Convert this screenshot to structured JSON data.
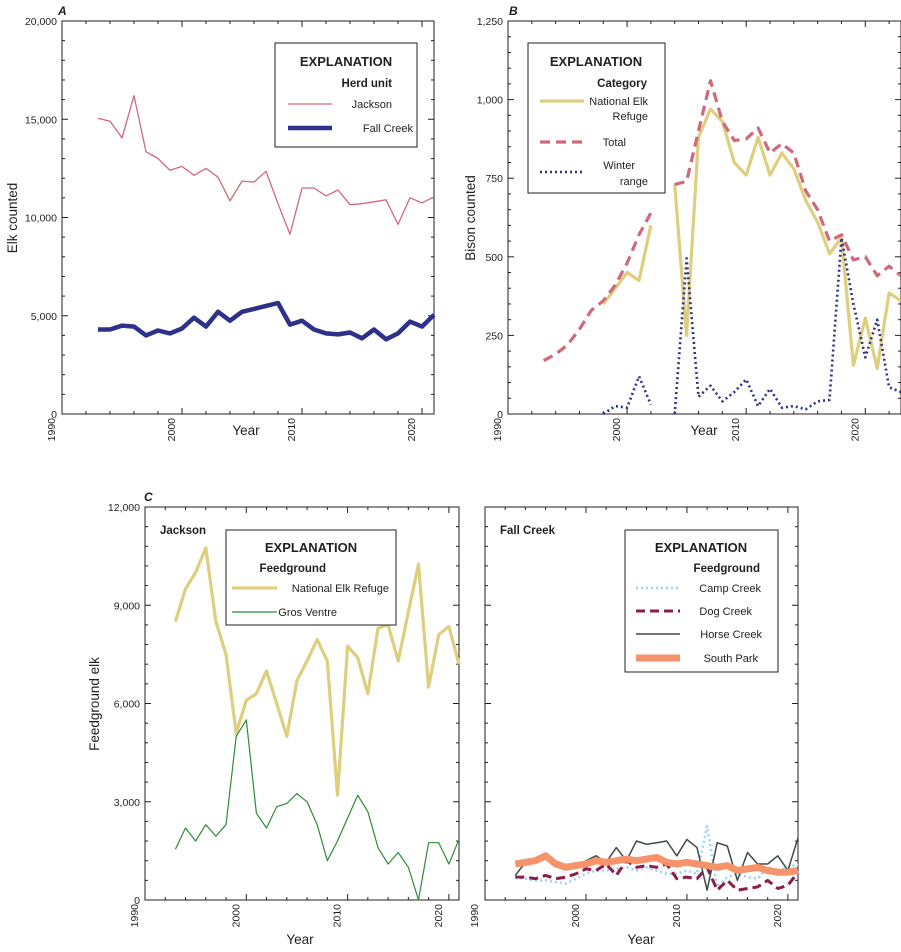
{
  "chart_data": [
    {
      "panel": "A",
      "type": "line",
      "xlabel": "Year",
      "ylabel": "Elk counted",
      "xlim": [
        1990,
        2021
      ],
      "ylim": [
        0,
        20000
      ],
      "xticks": [
        1990,
        2000,
        2010,
        2020
      ],
      "yticks": [
        0,
        5000,
        10000,
        15000,
        20000
      ],
      "xtick_labels": [
        "1990",
        "2000",
        "2010",
        "2020"
      ],
      "ytick_labels": [
        "0",
        "5,000",
        "10,000",
        "15,000",
        "20,000"
      ],
      "legend": {
        "title": "EXPLANATION",
        "subtitle": "Herd unit"
      },
      "series": [
        {
          "name": "Jackson",
          "color": "#d0697b",
          "width": 1.3,
          "x": [
            1993,
            1994,
            1995,
            1996,
            1997,
            1998,
            1999,
            2000,
            2001,
            2002,
            2003,
            2004,
            2005,
            2006,
            2007,
            2008,
            2009,
            2010,
            2011,
            2012,
            2013,
            2014,
            2015,
            2016,
            2017,
            2018,
            2019,
            2020,
            2021
          ],
          "y": [
            15050,
            14900,
            14050,
            16200,
            13350,
            13000,
            12400,
            12600,
            12150,
            12500,
            12050,
            10850,
            11850,
            11800,
            12350,
            10700,
            9150,
            11500,
            11500,
            11100,
            11400,
            10650,
            10700,
            10800,
            10900,
            9650,
            11000,
            10750,
            11050
          ]
        },
        {
          "name": "Fall Creek",
          "color": "#2e3089",
          "width": 4.5,
          "x": [
            1993,
            1994,
            1995,
            1996,
            1997,
            1998,
            1999,
            2000,
            2001,
            2002,
            2003,
            2004,
            2005,
            2006,
            2007,
            2008,
            2009,
            2010,
            2011,
            2012,
            2013,
            2014,
            2015,
            2016,
            2017,
            2018,
            2019,
            2020,
            2021
          ],
          "y": [
            4300,
            4300,
            4500,
            4450,
            4000,
            4250,
            4100,
            4350,
            4900,
            4450,
            5200,
            4750,
            5200,
            5350,
            5500,
            5650,
            4550,
            4750,
            4300,
            4100,
            4050,
            4150,
            3850,
            4300,
            3800,
            4100,
            4700,
            4450,
            5050
          ]
        }
      ]
    },
    {
      "panel": "B",
      "type": "line",
      "xlabel": "Year",
      "ylabel": "Bison counted",
      "xlim": [
        1990,
        2023
      ],
      "ylim": [
        0,
        1250
      ],
      "xticks": [
        1990,
        2000,
        2010,
        2020
      ],
      "yticks": [
        0,
        250,
        500,
        750,
        1000,
        1250
      ],
      "xtick_labels": [
        "1990",
        "2000",
        "2010",
        "2020"
      ],
      "ytick_labels": [
        "0",
        "250",
        "500",
        "750",
        "1,000",
        "1,250"
      ],
      "legend": {
        "title": "EXPLANATION",
        "subtitle": "Category"
      },
      "series": [
        {
          "name": "National Elk Refuge",
          "legend_lines": [
            "National Elk",
            "Refuge"
          ],
          "color": "#ddcf7d",
          "width": 3.2,
          "dash": "",
          "segments": [
            {
              "x": [
                1998,
                2000,
                2001,
                2002
              ],
              "y": [
                350,
                450,
                425,
                600
              ]
            },
            {
              "x": [
                2004,
                2005,
                2006,
                2007,
                2008,
                2009,
                2010,
                2011,
                2012,
                2013,
                2014,
                2015,
                2016,
                2017,
                2018,
                2019,
                2020,
                2021,
                2022,
                2023
              ],
              "y": [
                730,
                250,
                880,
                970,
                930,
                800,
                760,
                880,
                760,
                830,
                780,
                680,
                610,
                510,
                560,
                155,
                305,
                145,
                385,
                360
              ]
            }
          ]
        },
        {
          "name": "Total",
          "legend_lines": [
            "Total"
          ],
          "color": "#d0697b",
          "width": 3.2,
          "dash": "10 6",
          "segments": [
            {
              "x": [
                1993,
                1994,
                1995,
                1996,
                1997,
                1998,
                1999,
                2000,
                2001,
                2002
              ],
              "y": [
                170,
                190,
                220,
                270,
                330,
                360,
                410,
                480,
                570,
                640
              ]
            },
            {
              "x": [
                2004,
                2005,
                2006,
                2007,
                2008,
                2009,
                2010,
                2011,
                2012,
                2013,
                2014,
                2015,
                2016,
                2017,
                2018,
                2019,
                2020,
                2021,
                2022,
                2023
              ],
              "y": [
                730,
                740,
                900,
                1060,
                930,
                870,
                875,
                910,
                830,
                860,
                830,
                710,
                650,
                550,
                570,
                490,
                500,
                440,
                470,
                440
              ]
            }
          ]
        },
        {
          "name": "Winter range",
          "legend_lines": [
            "Winter",
            "range"
          ],
          "color": "#2e3089",
          "width": 2.6,
          "dash": "2 3",
          "segments": [
            {
              "x": [
                1998,
                1999,
                2000,
                2001,
                2002
              ],
              "y": [
                0,
                25,
                20,
                120,
                30
              ]
            },
            {
              "x": [
                2004,
                2005,
                2006,
                2007,
                2008,
                2009,
                2010,
                2011,
                2012,
                2013,
                2014,
                2015,
                2016,
                2017,
                2018,
                2019,
                2020,
                2021,
                2022,
                2023
              ],
              "y": [
                0,
                495,
                55,
                90,
                40,
                70,
                110,
                25,
                80,
                20,
                25,
                15,
                40,
                45,
                560,
                350,
                180,
                300,
                85,
                70
              ]
            }
          ]
        }
      ]
    },
    {
      "panel": "C",
      "subpanel": "Jackson",
      "type": "line",
      "xlabel": "Year",
      "ylabel": "Feedground elk",
      "xlim": [
        1990,
        2021
      ],
      "ylim": [
        0,
        12000
      ],
      "xticks": [
        1990,
        2000,
        2010,
        2020
      ],
      "yticks": [
        0,
        3000,
        6000,
        9000,
        12000
      ],
      "xtick_labels": [
        "1990",
        "2000",
        "2010",
        "2020"
      ],
      "ytick_labels": [
        "0",
        "3,000",
        "6,000",
        "9,000",
        "12,000"
      ],
      "legend": {
        "title": "EXPLANATION",
        "subtitle": "Feedground"
      },
      "series": [
        {
          "name": "National Elk Refuge",
          "color": "#ddcf7d",
          "width": 3.2,
          "x": [
            1993,
            1994,
            1995,
            1996,
            1997,
            1998,
            1999,
            2000,
            2001,
            2002,
            2003,
            2004,
            2005,
            2006,
            2007,
            2008,
            2009,
            2010,
            2011,
            2012,
            2013,
            2014,
            2015,
            2016,
            2017,
            2018,
            2019,
            2020,
            2021
          ],
          "y": [
            8500,
            9500,
            10000,
            10750,
            8500,
            7500,
            5100,
            6100,
            6300,
            7000,
            6000,
            5000,
            6700,
            7300,
            7950,
            7300,
            3200,
            7750,
            7400,
            6300,
            8300,
            8400,
            7300,
            8800,
            10250,
            6500,
            8100,
            8350,
            7200
          ]
        },
        {
          "name": "Gros Ventre",
          "color": "#2e8b3a",
          "width": 1.2,
          "x": [
            1993,
            1994,
            1995,
            1996,
            1997,
            1998,
            1999,
            2000,
            2001,
            2002,
            2003,
            2004,
            2005,
            2006,
            2007,
            2008,
            2009,
            2010,
            2011,
            2012,
            2013,
            2014,
            2015,
            2016,
            2017,
            2018,
            2019,
            2020,
            2021
          ],
          "y": [
            1550,
            2200,
            1800,
            2300,
            1950,
            2300,
            5000,
            5500,
            2650,
            2200,
            2850,
            2950,
            3250,
            3000,
            2300,
            1200,
            1800,
            2500,
            3200,
            2700,
            1600,
            1100,
            1450,
            1000,
            0,
            1750,
            1750,
            1100,
            1850
          ]
        }
      ]
    },
    {
      "panel": "C",
      "subpanel": "Fall Creek",
      "type": "line",
      "xlabel": "Year",
      "xlim": [
        1990,
        2021
      ],
      "ylim": [
        0,
        12000
      ],
      "xticks": [
        1990,
        2000,
        2010,
        2020
      ],
      "xtick_labels": [
        "1990",
        "2000",
        "2010",
        "2020"
      ],
      "legend": {
        "title": "EXPLANATION",
        "subtitle": "Feedground"
      },
      "series": [
        {
          "name": "Camp Creek",
          "color": "#9dd3ee",
          "width": 2.6,
          "dash": "2 3",
          "x": [
            1993,
            1994,
            1995,
            1996,
            1997,
            1998,
            1999,
            2000,
            2001,
            2002,
            2003,
            2004,
            2005,
            2006,
            2007,
            2008,
            2009,
            2010,
            2011,
            2012,
            2013,
            2014,
            2015,
            2016,
            2017,
            2018,
            2019,
            2020,
            2021
          ],
          "y": [
            700,
            650,
            600,
            600,
            550,
            500,
            650,
            800,
            900,
            900,
            950,
            1000,
            900,
            1000,
            900,
            800,
            800,
            900,
            800,
            2250,
            400,
            700,
            800,
            700,
            650,
            1000,
            900,
            1000,
            1100
          ]
        },
        {
          "name": "Dog Creek",
          "color": "#8c1d4c",
          "width": 3.0,
          "dash": "9 5",
          "x": [
            1993,
            1994,
            1995,
            1996,
            1997,
            1998,
            1999,
            2000,
            2001,
            2002,
            2003,
            2004,
            2005,
            2006,
            2007,
            2008,
            2009,
            2010,
            2011,
            2012,
            2013,
            2014,
            2015,
            2016,
            2017,
            2018,
            2019,
            2020,
            2021
          ],
          "y": [
            700,
            700,
            650,
            750,
            650,
            700,
            800,
            950,
            900,
            1100,
            750,
            1200,
            1000,
            1050,
            1000,
            1100,
            650,
            700,
            650,
            1000,
            300,
            600,
            300,
            350,
            400,
            600,
            350,
            450,
            850
          ]
        },
        {
          "name": "Horse Creek",
          "color": "#3d4a45",
          "width": 1.5,
          "dash": "",
          "x": [
            1993,
            1994,
            1995,
            1996,
            1997,
            1998,
            1999,
            2000,
            2001,
            2002,
            2003,
            2004,
            2005,
            2006,
            2007,
            2008,
            2009,
            2010,
            2011,
            2012,
            2013,
            2014,
            2015,
            2016,
            2017,
            2018,
            2019,
            2020,
            2021
          ],
          "y": [
            750,
            1150,
            1250,
            1400,
            1150,
            1050,
            1000,
            1200,
            1350,
            1150,
            1600,
            1200,
            1800,
            1700,
            1750,
            1800,
            1350,
            1850,
            1600,
            300,
            1750,
            1650,
            600,
            1450,
            1100,
            1100,
            1350,
            900,
            1900
          ]
        },
        {
          "name": "South Park",
          "color": "#f7936a",
          "width": 7,
          "dash": "",
          "x": [
            1993,
            1994,
            1995,
            1996,
            1997,
            1998,
            1999,
            2000,
            2001,
            2002,
            2003,
            2004,
            2005,
            2006,
            2007,
            2008,
            2009,
            2010,
            2011,
            2012,
            2013,
            2014,
            2015,
            2016,
            2017,
            2018,
            2019,
            2020,
            2021
          ],
          "y": [
            1100,
            1150,
            1200,
            1350,
            1100,
            1000,
            1050,
            1100,
            1200,
            1150,
            1200,
            1250,
            1200,
            1250,
            1300,
            1150,
            1100,
            1150,
            1100,
            1050,
            1000,
            1050,
            900,
            950,
            1000,
            900,
            850,
            850,
            900
          ]
        }
      ]
    }
  ],
  "labels": {
    "panelA": "A",
    "panelB": "B",
    "panelC": "C",
    "subtitleJackson": "Jackson",
    "subtitleFallCreek": "Fall Creek"
  }
}
